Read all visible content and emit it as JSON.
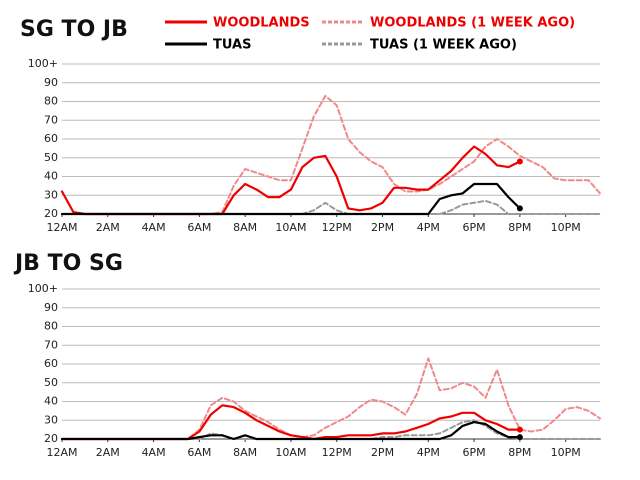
{
  "chart_data": [
    {
      "type": "line",
      "title": "SG TO JB",
      "x": [
        0,
        0.5,
        1,
        1.5,
        2,
        2.5,
        3,
        3.5,
        4,
        4.5,
        5,
        5.5,
        6,
        6.5,
        7,
        7.5,
        8,
        8.5,
        9,
        9.5,
        10,
        10.5,
        11,
        11.5,
        12,
        12.5,
        13,
        13.5,
        14,
        14.5,
        15,
        15.5,
        16,
        16.5,
        17,
        17.5,
        18,
        18.5,
        19,
        19.5,
        20,
        20.5,
        21,
        21.5,
        22,
        22.5,
        23,
        23.5
      ],
      "xlim": [
        0,
        23.5
      ],
      "xticks": [
        {
          "value": 0,
          "label": "12AM"
        },
        {
          "value": 2,
          "label": "2AM"
        },
        {
          "value": 4,
          "label": "4AM"
        },
        {
          "value": 6,
          "label": "6AM"
        },
        {
          "value": 8,
          "label": "8AM"
        },
        {
          "value": 10,
          "label": "10AM"
        },
        {
          "value": 12,
          "label": "12PM"
        },
        {
          "value": 14,
          "label": "2PM"
        },
        {
          "value": 16,
          "label": "4PM"
        },
        {
          "value": 18,
          "label": "6PM"
        },
        {
          "value": 20,
          "label": "8PM"
        },
        {
          "value": 22,
          "label": "10PM"
        }
      ],
      "ylim": [
        20,
        100
      ],
      "yticks": [
        20,
        30,
        40,
        50,
        60,
        70,
        80,
        90,
        {
          "value": 100,
          "label": "100+"
        }
      ],
      "grid": true,
      "series": [
        {
          "name": "WOODLANDS",
          "color": "#ee0000",
          "label_color": "#ee0000",
          "dashed": false,
          "values": [
            32,
            21,
            20,
            20,
            20,
            20,
            20,
            20,
            20,
            20,
            20,
            20,
            20,
            20,
            20,
            30,
            36,
            33,
            29,
            29,
            33,
            45,
            50,
            51,
            40,
            23,
            22,
            23,
            26,
            34,
            34,
            33,
            33,
            38,
            43,
            50,
            56,
            52,
            46,
            45,
            48,
            null,
            null,
            null,
            null,
            null,
            null,
            null
          ]
        },
        {
          "name": "WOODLANDS (1 WEEK AGO)",
          "color": "#f08a8a",
          "label_color": "#ee0000",
          "dashed": true,
          "values": [
            20,
            20,
            20,
            20,
            20,
            20,
            20,
            20,
            20,
            20,
            20,
            20,
            20,
            20,
            21,
            35,
            44,
            42,
            40,
            38,
            38,
            55,
            72,
            83,
            78,
            60,
            53,
            48,
            45,
            36,
            32,
            32,
            33,
            36,
            40,
            44,
            48,
            56,
            60,
            56,
            51,
            48,
            45,
            39,
            38,
            38,
            38,
            31
          ]
        },
        {
          "name": "TUAS",
          "color": "#000000",
          "label_color": "#000000",
          "dashed": false,
          "values": [
            20,
            20,
            20,
            20,
            20,
            20,
            20,
            20,
            20,
            20,
            20,
            20,
            20,
            20,
            20,
            20,
            20,
            20,
            20,
            20,
            20,
            20,
            20,
            20,
            20,
            20,
            20,
            20,
            20,
            20,
            20,
            20,
            20,
            28,
            30,
            31,
            36,
            36,
            36,
            29,
            23,
            null,
            null,
            null,
            null,
            null,
            null,
            null
          ]
        },
        {
          "name": "TUAS (1 WEEK AGO)",
          "color": "#999999",
          "label_color": "#000000",
          "dashed": true,
          "values": [
            20,
            20,
            20,
            20,
            20,
            20,
            20,
            20,
            20,
            20,
            20,
            20,
            20,
            20,
            20,
            20,
            20,
            20,
            20,
            20,
            20,
            20,
            22,
            26,
            22,
            20,
            20,
            20,
            20,
            20,
            20,
            20,
            20,
            20,
            22,
            25,
            26,
            27,
            25,
            20,
            20,
            20,
            20,
            20,
            20,
            20,
            20,
            20
          ]
        }
      ]
    },
    {
      "type": "line",
      "title": "JB TO SG",
      "x": [
        0,
        0.5,
        1,
        1.5,
        2,
        2.5,
        3,
        3.5,
        4,
        4.5,
        5,
        5.5,
        6,
        6.5,
        7,
        7.5,
        8,
        8.5,
        9,
        9.5,
        10,
        10.5,
        11,
        11.5,
        12,
        12.5,
        13,
        13.5,
        14,
        14.5,
        15,
        15.5,
        16,
        16.5,
        17,
        17.5,
        18,
        18.5,
        19,
        19.5,
        20,
        20.5,
        21,
        21.5,
        22,
        22.5,
        23,
        23.5
      ],
      "xlim": [
        0,
        23.5
      ],
      "xticks": [
        {
          "value": 0,
          "label": "12AM"
        },
        {
          "value": 2,
          "label": "2AM"
        },
        {
          "value": 4,
          "label": "4AM"
        },
        {
          "value": 6,
          "label": "6AM"
        },
        {
          "value": 8,
          "label": "8AM"
        },
        {
          "value": 10,
          "label": "10AM"
        },
        {
          "value": 12,
          "label": "12PM"
        },
        {
          "value": 14,
          "label": "2PM"
        },
        {
          "value": 16,
          "label": "4PM"
        },
        {
          "value": 18,
          "label": "6PM"
        },
        {
          "value": 20,
          "label": "8PM"
        },
        {
          "value": 22,
          "label": "10PM"
        }
      ],
      "ylim": [
        20,
        100
      ],
      "yticks": [
        20,
        30,
        40,
        50,
        60,
        70,
        80,
        90,
        {
          "value": 100,
          "label": "100+"
        }
      ],
      "grid": true,
      "series": [
        {
          "color": "#ee0000",
          "dashed": false,
          "values": [
            20,
            20,
            20,
            20,
            20,
            20,
            20,
            20,
            20,
            20,
            20,
            20,
            24,
            33,
            38,
            37,
            34,
            30,
            27,
            24,
            22,
            21,
            20,
            21,
            21,
            22,
            22,
            22,
            23,
            23,
            24,
            26,
            28,
            31,
            32,
            34,
            34,
            30,
            28,
            25,
            25,
            null,
            null,
            null,
            null,
            null,
            null,
            null
          ]
        },
        {
          "color": "#f08a8a",
          "dashed": true,
          "values": [
            20,
            20,
            20,
            20,
            20,
            20,
            20,
            20,
            20,
            20,
            20,
            20,
            25,
            38,
            42,
            40,
            35,
            32,
            29,
            25,
            22,
            21,
            22,
            26,
            29,
            32,
            37,
            41,
            40,
            37,
            33,
            44,
            63,
            46,
            47,
            50,
            48,
            42,
            57,
            38,
            25,
            24,
            25,
            30,
            36,
            37,
            35,
            31
          ]
        },
        {
          "color": "#000000",
          "dashed": false,
          "values": [
            20,
            20,
            20,
            20,
            20,
            20,
            20,
            20,
            20,
            20,
            20,
            20,
            21,
            22,
            22,
            20,
            22,
            20,
            20,
            20,
            20,
            20,
            20,
            20,
            20,
            20,
            20,
            20,
            20,
            20,
            20,
            20,
            20,
            20,
            22,
            27,
            29,
            28,
            24,
            21,
            21,
            null,
            null,
            null,
            null,
            null,
            null,
            null
          ]
        },
        {
          "color": "#999999",
          "dashed": true,
          "values": [
            20,
            20,
            20,
            20,
            20,
            20,
            20,
            20,
            20,
            20,
            20,
            20,
            20,
            23,
            22,
            20,
            20,
            20,
            20,
            20,
            20,
            20,
            20,
            20,
            20,
            20,
            20,
            20,
            21,
            21,
            22,
            22,
            22,
            23,
            26,
            29,
            30,
            27,
            23,
            21,
            20,
            20,
            20,
            20,
            20,
            20,
            20,
            20
          ]
        }
      ]
    }
  ]
}
